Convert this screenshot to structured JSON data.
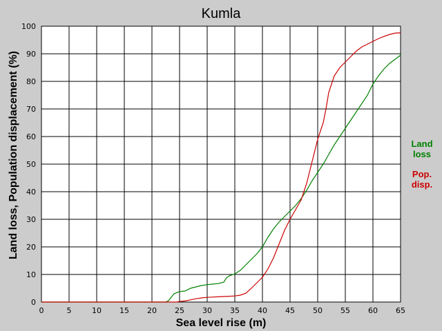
{
  "chart_data": {
    "type": "line",
    "title": "Kumla",
    "xlabel": "Sea level rise (m)",
    "ylabel": "Land loss, Population displacement (%)",
    "xlim": [
      0,
      65
    ],
    "ylim": [
      0,
      100
    ],
    "xticks": [
      0,
      5,
      10,
      15,
      20,
      25,
      30,
      35,
      40,
      45,
      50,
      55,
      60,
      65
    ],
    "yticks": [
      0,
      10,
      20,
      30,
      40,
      50,
      60,
      70,
      80,
      90,
      100
    ],
    "grid": true,
    "legend_position": "right",
    "series": [
      {
        "name": "Land loss",
        "legend_lines": [
          "Land",
          "loss"
        ],
        "color": "#008000",
        "points": [
          [
            0,
            0
          ],
          [
            22.5,
            0
          ],
          [
            23,
            0.5
          ],
          [
            24,
            3
          ],
          [
            25,
            3.8
          ],
          [
            26,
            4
          ],
          [
            27,
            5
          ],
          [
            28,
            5.5
          ],
          [
            29,
            6
          ],
          [
            30,
            6.3
          ],
          [
            31,
            6.5
          ],
          [
            32,
            6.7
          ],
          [
            33,
            7.2
          ],
          [
            33.5,
            8.8
          ],
          [
            34,
            9.5
          ],
          [
            35,
            10.2
          ],
          [
            36,
            11.5
          ],
          [
            37,
            13.5
          ],
          [
            38,
            15.5
          ],
          [
            39,
            17.5
          ],
          [
            40,
            20
          ],
          [
            41,
            23.5
          ],
          [
            42,
            26.5
          ],
          [
            43,
            29
          ],
          [
            44,
            31
          ],
          [
            45,
            33
          ],
          [
            46,
            35
          ],
          [
            47,
            37.5
          ],
          [
            48,
            40.5
          ],
          [
            49,
            44
          ],
          [
            50,
            47
          ],
          [
            51,
            50
          ],
          [
            52,
            53.5
          ],
          [
            53,
            57
          ],
          [
            54,
            60
          ],
          [
            55,
            63
          ],
          [
            56,
            66
          ],
          [
            57,
            69
          ],
          [
            58,
            72
          ],
          [
            59,
            75
          ],
          [
            60,
            79
          ],
          [
            61,
            82
          ],
          [
            62,
            84.5
          ],
          [
            63,
            86.5
          ],
          [
            64,
            88
          ],
          [
            65,
            89.5
          ]
        ]
      },
      {
        "name": "Pop. disp.",
        "legend_lines": [
          "Pop.",
          "disp."
        ],
        "color": "#cc0000",
        "points": [
          [
            0,
            0
          ],
          [
            24.5,
            0
          ],
          [
            25,
            0.2
          ],
          [
            26,
            0.4
          ],
          [
            27,
            0.8
          ],
          [
            28,
            1.2
          ],
          [
            29,
            1.5
          ],
          [
            30,
            1.7
          ],
          [
            31,
            1.8
          ],
          [
            32,
            1.9
          ],
          [
            33,
            2
          ],
          [
            34,
            2.1
          ],
          [
            35,
            2.2
          ],
          [
            36,
            2.5
          ],
          [
            37,
            3.2
          ],
          [
            38,
            5
          ],
          [
            39,
            7
          ],
          [
            40,
            9
          ],
          [
            41,
            12
          ],
          [
            42,
            16
          ],
          [
            43,
            21
          ],
          [
            44,
            26
          ],
          [
            45,
            30
          ],
          [
            46,
            33.5
          ],
          [
            47,
            37
          ],
          [
            48,
            43
          ],
          [
            49,
            51
          ],
          [
            50,
            59
          ],
          [
            51,
            65
          ],
          [
            51.5,
            70
          ],
          [
            52,
            76
          ],
          [
            53,
            82
          ],
          [
            54,
            85
          ],
          [
            55,
            87
          ],
          [
            56,
            89
          ],
          [
            57,
            91
          ],
          [
            58,
            92.5
          ],
          [
            59,
            93.5
          ],
          [
            60,
            94.5
          ],
          [
            61,
            95.5
          ],
          [
            62,
            96.3
          ],
          [
            63,
            97
          ],
          [
            64,
            97.5
          ],
          [
            65,
            97.6
          ]
        ]
      }
    ]
  },
  "colors": {
    "background": "#cccccc",
    "plot_area": "#ffffff",
    "grid": "#000000"
  }
}
